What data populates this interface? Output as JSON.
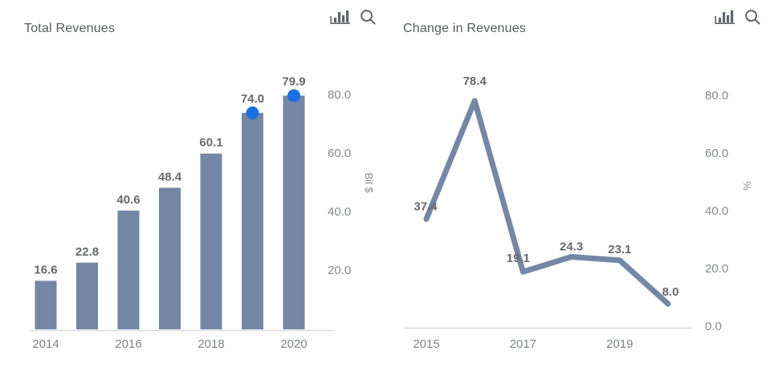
{
  "accent_colors": {
    "series": "#7487a5",
    "marker_blue": "#1a70e0",
    "axis_line": "#d9dadc",
    "title_text": "#56595d",
    "data_label_text": "#67696c",
    "tick_text": "#86898d",
    "year_text": "#7e8286",
    "icon_gray": "#5f646b"
  },
  "chart_data": [
    {
      "type": "bar",
      "title": "Total Revenues",
      "categories": [
        "2014",
        "2015",
        "2016",
        "2017",
        "2018",
        "2019",
        "2020"
      ],
      "values": [
        16.6,
        22.8,
        40.6,
        48.4,
        60.1,
        74.0,
        79.9
      ],
      "data_labels": [
        "16.6",
        "22.8",
        "40.6",
        "48.4",
        "60.1",
        "74.0",
        "79.9"
      ],
      "marker_indices": [
        5,
        6
      ],
      "x_tick_labels": [
        "2014",
        "2016",
        "2018",
        "2020"
      ],
      "x_tick_positions": [
        0,
        2,
        4,
        6
      ],
      "y_ticks": [
        20,
        40,
        60,
        80
      ],
      "y_tick_labels": [
        "20.0",
        "40.0",
        "60.0",
        "80.0"
      ],
      "ylabel": "Bil $",
      "xlabel": "",
      "ylim": [
        0,
        85
      ],
      "grid": false,
      "legend": "none",
      "bar_color": "#7487a5",
      "marker_color": "#1a70e0",
      "icons": [
        {
          "name": "bar-chart-icon"
        },
        {
          "name": "search-icon"
        }
      ]
    },
    {
      "type": "line",
      "title": "Change in Revenues",
      "categories": [
        "2015",
        "2016",
        "2017",
        "2018",
        "2019",
        "2020"
      ],
      "values": [
        37.4,
        78.4,
        19.1,
        24.3,
        23.1,
        8.0
      ],
      "data_labels": [
        "37.4",
        "78.4",
        "19.1",
        "24.3",
        "23.1",
        "8.0"
      ],
      "x_tick_labels": [
        "2015",
        "2017",
        "2019"
      ],
      "x_tick_positions": [
        0,
        2,
        4
      ],
      "y_ticks": [
        0,
        20,
        40,
        60,
        80
      ],
      "y_tick_labels": [
        "0.0",
        "20.0",
        "40.0",
        "60.0",
        "80.0"
      ],
      "ylabel": "%",
      "xlabel": "",
      "ylim": [
        0,
        85
      ],
      "grid": false,
      "legend": "none",
      "line_color": "#7487a5",
      "icons": [
        {
          "name": "bar-chart-icon"
        },
        {
          "name": "search-icon"
        }
      ]
    }
  ]
}
